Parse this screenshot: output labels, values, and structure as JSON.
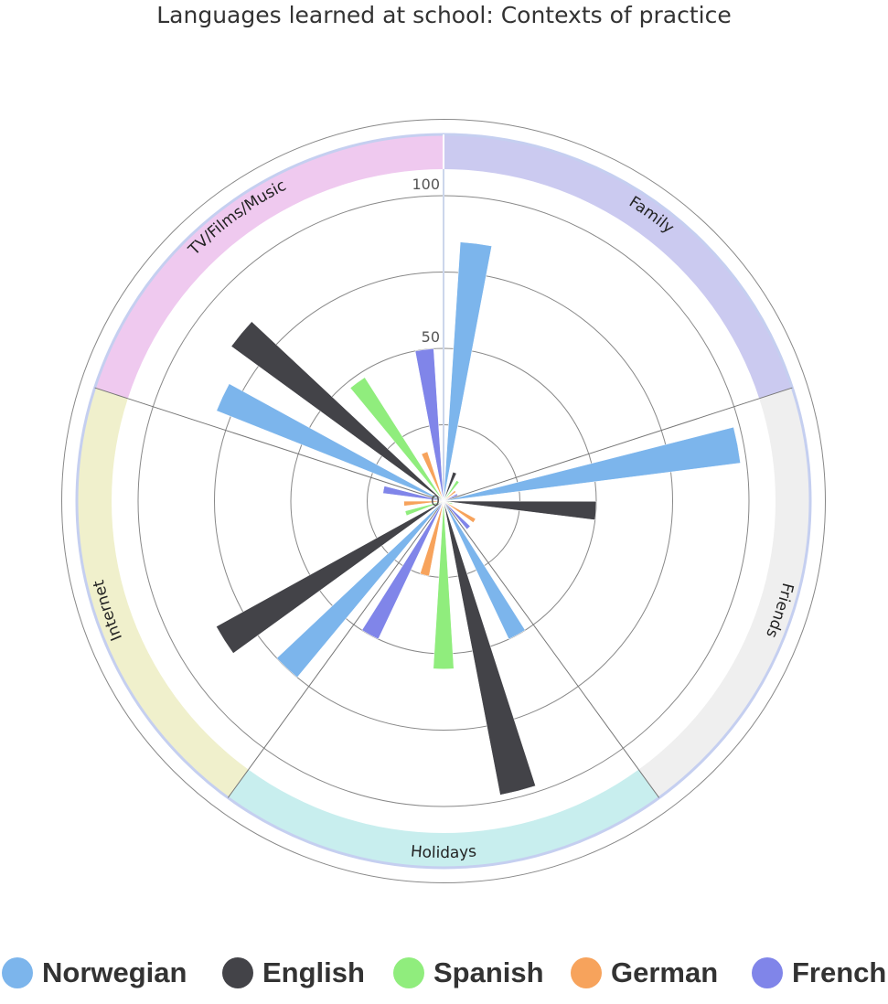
{
  "chart_data": {
    "type": "bar",
    "subtype": "polar-column",
    "title": "Languages learned at school: Contexts of practice",
    "categories": [
      "Family",
      "Friends",
      "Holidays",
      "Internet",
      "TV/Films/Music"
    ],
    "radial_axis": {
      "min": 0,
      "max": 120,
      "tick_labels": [
        "0",
        "50",
        "100"
      ],
      "gridlines": [
        0,
        25,
        50,
        75,
        100,
        125
      ]
    },
    "series": [
      {
        "name": "Norwegian",
        "color": "#7cb5ec",
        "values": [
          85,
          98,
          50,
          75,
          80
        ]
      },
      {
        "name": "English",
        "color": "#434348",
        "values": [
          10,
          50,
          98,
          85,
          86
        ]
      },
      {
        "name": "Spanish",
        "color": "#90ed7d",
        "values": [
          8,
          3,
          55,
          13,
          48
        ]
      },
      {
        "name": "German",
        "color": "#f7a35c",
        "values": [
          5,
          12,
          25,
          13,
          17
        ]
      },
      {
        "name": "French",
        "color": "#8085e9",
        "values": [
          5,
          12,
          50,
          20,
          50
        ]
      }
    ],
    "category_band_colors": [
      "#cbcaf0",
      "#efefef",
      "#c8eeee",
      "#f0f0cc",
      "#efc9ef"
    ],
    "grid": true,
    "legend": "bottom"
  }
}
